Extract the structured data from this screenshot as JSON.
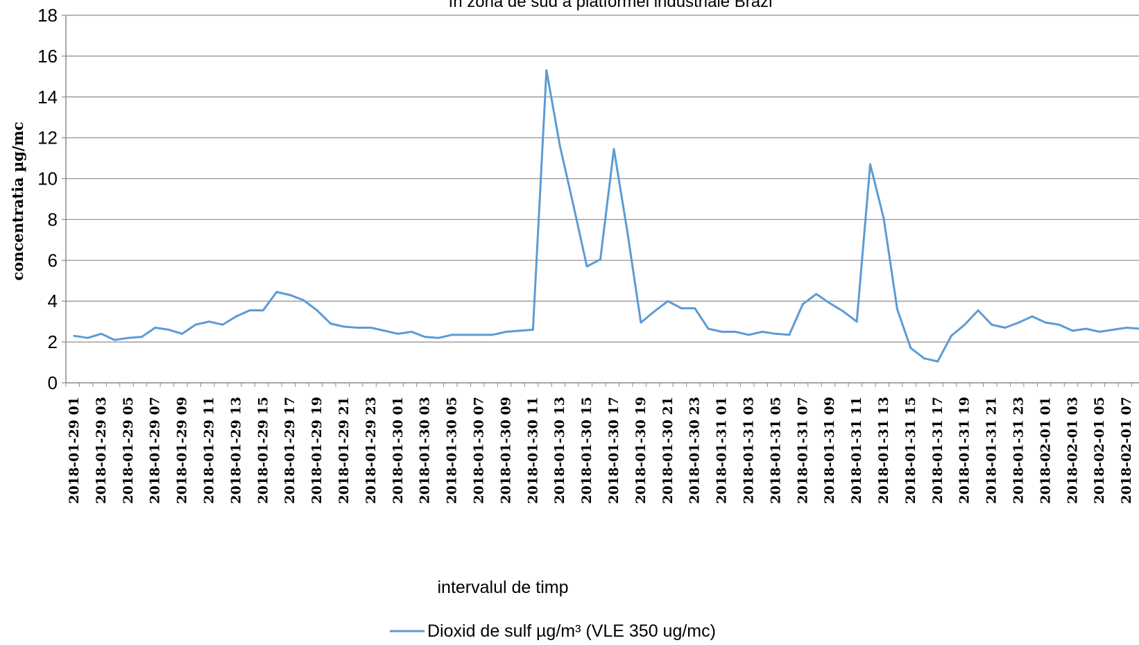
{
  "chart_data": {
    "type": "line",
    "title": "în zona de sud a platformei industriale Brazi",
    "xlabel": "intervalul de timp",
    "ylabel": "concentratia µg/mc",
    "ylim": [
      0,
      18
    ],
    "yticks": [
      "0",
      "2",
      "4",
      "6",
      "8",
      "10",
      "12",
      "14",
      "16",
      "18"
    ],
    "grid": true,
    "legend_position": "bottom",
    "line_color": "#5b9bd5",
    "x_tick_labels": [
      "2018-01-29 01",
      "2018-01-29 03",
      "2018-01-29 05",
      "2018-01-29 07",
      "2018-01-29 09",
      "2018-01-29 11",
      "2018-01-29 13",
      "2018-01-29 15",
      "2018-01-29 17",
      "2018-01-29 19",
      "2018-01-29 21",
      "2018-01-29 23",
      "2018-01-30 01",
      "2018-01-30 03",
      "2018-01-30 05",
      "2018-01-30 07",
      "2018-01-30 09",
      "2018-01-30 11",
      "2018-01-30 13",
      "2018-01-30 15",
      "2018-01-30 17",
      "2018-01-30 19",
      "2018-01-30 21",
      "2018-01-30 23",
      "2018-01-31 01",
      "2018-01-31 03",
      "2018-01-31 05",
      "2018-01-31 07",
      "2018-01-31 09",
      "2018-01-31 11",
      "2018-01-31 13",
      "2018-01-31 15",
      "2018-01-31 17",
      "2018-01-31 19",
      "2018-01-31 21",
      "2018-01-31 23",
      "2018-02-01 01",
      "2018-02-01 03",
      "2018-02-01 05",
      "2018-02-01 07"
    ],
    "series": [
      {
        "name": "Dioxid de sulf µg/m³ (VLE 350 ug/mc)",
        "values": [
          2.3,
          2.2,
          2.4,
          2.1,
          2.2,
          2.25,
          2.7,
          2.6,
          2.4,
          2.85,
          3.0,
          2.85,
          3.25,
          3.55,
          3.55,
          4.45,
          4.3,
          4.05,
          3.55,
          2.9,
          2.75,
          2.7,
          2.7,
          2.55,
          2.4,
          2.5,
          2.25,
          2.2,
          2.35,
          2.35,
          2.35,
          2.35,
          2.5,
          2.55,
          2.6,
          15.3,
          11.6,
          8.7,
          5.7,
          6.05,
          11.45,
          7.4,
          2.95,
          3.5,
          4.0,
          3.65,
          3.65,
          2.65,
          2.5,
          2.5,
          2.35,
          2.5,
          2.4,
          2.35,
          3.85,
          4.35,
          3.9,
          3.5,
          3.0,
          10.7,
          8.05,
          3.6,
          1.7,
          1.2,
          1.05,
          2.3,
          2.85,
          3.55,
          2.85,
          2.7,
          2.95,
          3.25,
          2.95,
          2.85,
          2.55,
          2.65,
          2.5,
          2.6,
          2.7,
          2.65
        ]
      }
    ]
  }
}
